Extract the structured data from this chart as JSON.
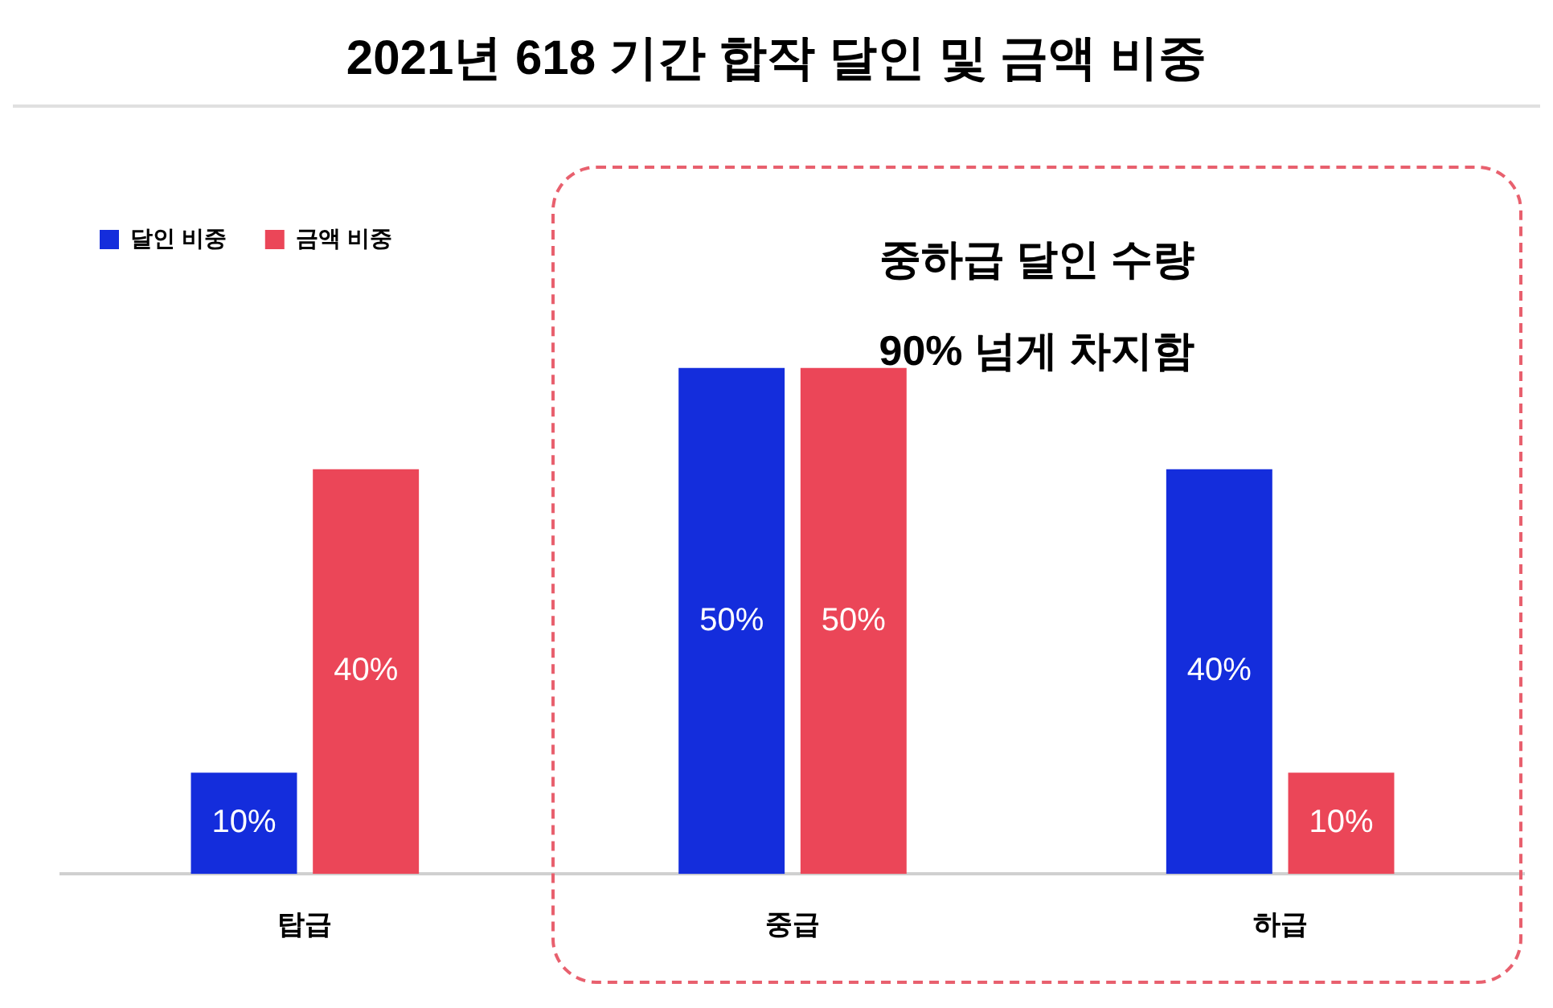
{
  "chart_data": {
    "type": "bar",
    "title": "2021년 618 기간 합작 달인 및 금액 비중",
    "categories": [
      "탑급",
      "중급",
      "하급"
    ],
    "series": [
      {
        "name": "달인 비중",
        "color": "#142ddc",
        "values": [
          10,
          50,
          40
        ],
        "value_labels": [
          "10%",
          "50%",
          "40%"
        ]
      },
      {
        "name": "금액 비중",
        "color": "#eb4658",
        "values": [
          40,
          50,
          10
        ],
        "value_labels": [
          "40%",
          "50%",
          "10%"
        ]
      }
    ],
    "legend": "top left",
    "grid": false,
    "annotations": [
      "중하급 달인 수량\n90% 넘게 차지함"
    ]
  }
}
